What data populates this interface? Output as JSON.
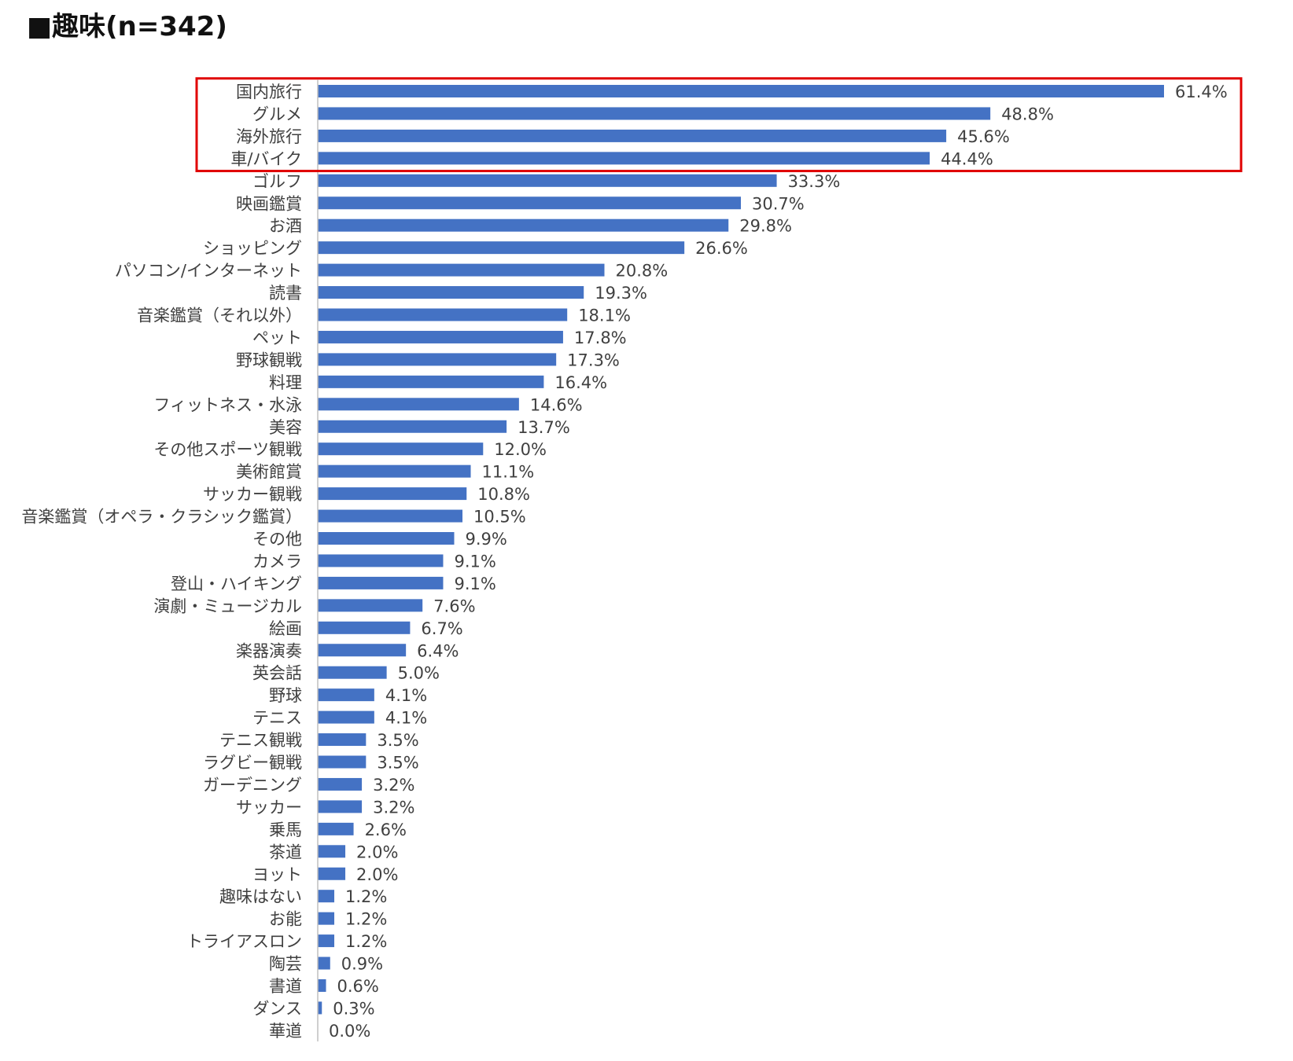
{
  "chart_data": {
    "type": "bar",
    "orientation": "horizontal",
    "title": "■趣味(n=342)",
    "xlabel": "",
    "ylabel": "",
    "xlim": [
      0,
      61.4
    ],
    "grid": false,
    "legend": "none",
    "bar_color": "#4472C4",
    "highlight_color": "#E00000",
    "highlight_categories": [
      "国内旅行",
      "グルメ",
      "海外旅行",
      "車/バイク"
    ],
    "categories": [
      "国内旅行",
      "グルメ",
      "海外旅行",
      "車/バイク",
      "ゴルフ",
      "映画鑑賞",
      "お酒",
      "ショッピング",
      "パソコン/インターネット",
      "読書",
      "音楽鑑賞（それ以外）",
      "ペット",
      "野球観戦",
      "料理",
      "フィットネス・水泳",
      "美容",
      "その他スポーツ観戦",
      "美術館賞",
      "サッカー観戦",
      "音楽鑑賞（オペラ・クラシック鑑賞）",
      "その他",
      "カメラ",
      "登山・ハイキング",
      "演劇・ミュージカル",
      "絵画",
      "楽器演奏",
      "英会話",
      "野球",
      "テニス",
      "テニス観戦",
      "ラグビー観戦",
      "ガーデニング",
      "サッカー",
      "乗馬",
      "茶道",
      "ヨット",
      "趣味はない",
      "お能",
      "トライアスロン",
      "陶芸",
      "書道",
      "ダンス",
      "華道"
    ],
    "values": [
      61.4,
      48.8,
      45.6,
      44.4,
      33.3,
      30.7,
      29.8,
      26.6,
      20.8,
      19.3,
      18.1,
      17.8,
      17.3,
      16.4,
      14.6,
      13.7,
      12.0,
      11.1,
      10.8,
      10.5,
      9.9,
      9.1,
      9.1,
      7.6,
      6.7,
      6.4,
      5.0,
      4.1,
      4.1,
      3.5,
      3.5,
      3.2,
      3.2,
      2.6,
      2.0,
      2.0,
      1.2,
      1.2,
      1.2,
      0.9,
      0.6,
      0.3,
      0.0
    ],
    "value_labels": [
      "61.4%",
      "48.8%",
      "45.6%",
      "44.4%",
      "33.3%",
      "30.7%",
      "29.8%",
      "26.6%",
      "20.8%",
      "19.3%",
      "18.1%",
      "17.8%",
      "17.3%",
      "16.4%",
      "14.6%",
      "13.7%",
      "12.0%",
      "11.1%",
      "10.8%",
      "10.5%",
      "9.9%",
      "9.1%",
      "9.1%",
      "7.6%",
      "6.7%",
      "6.4%",
      "5.0%",
      "4.1%",
      "4.1%",
      "3.5%",
      "3.5%",
      "3.2%",
      "3.2%",
      "2.6%",
      "2.0%",
      "2.0%",
      "1.2%",
      "1.2%",
      "1.2%",
      "0.9%",
      "0.6%",
      "0.3%",
      "0.0%"
    ]
  }
}
